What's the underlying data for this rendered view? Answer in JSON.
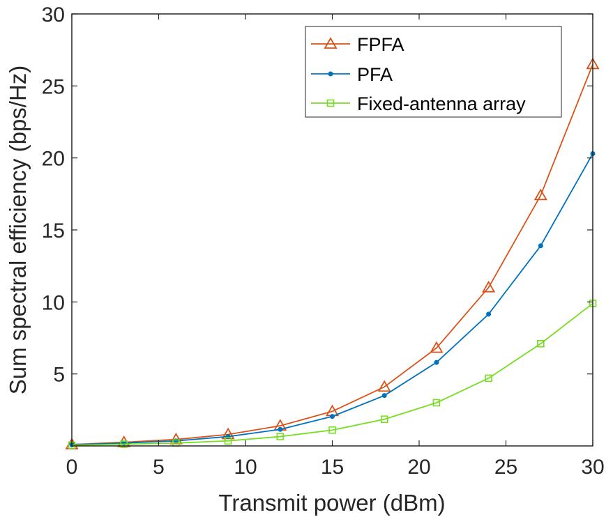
{
  "chart_data": {
    "type": "line",
    "title": "",
    "xlabel": "Transmit power (dBm)",
    "ylabel": "Sum spectral efficiency (bps/Hz)",
    "xlim": [
      0,
      30
    ],
    "ylim": [
      0,
      30
    ],
    "xticks": [
      0,
      5,
      10,
      15,
      20,
      25,
      30
    ],
    "xtick_labels": [
      "0",
      "5",
      "10",
      "15",
      "20",
      "25",
      "30"
    ],
    "yticks": [
      5,
      10,
      15,
      20,
      25,
      30
    ],
    "ytick_labels": [
      "5",
      "10",
      "15",
      "20",
      "25",
      "30"
    ],
    "grid": false,
    "legend_position": "top-right",
    "x": [
      0,
      3,
      6,
      9,
      12,
      15,
      18,
      21,
      24,
      27,
      30
    ],
    "series": [
      {
        "name": "FPFA",
        "color": "#D95319",
        "marker": "triangle",
        "values": [
          0.1,
          0.25,
          0.45,
          0.8,
          1.4,
          2.4,
          4.1,
          6.8,
          11.0,
          17.4,
          26.5
        ]
      },
      {
        "name": "PFA",
        "color": "#0072BD",
        "marker": "dot",
        "values": [
          0.08,
          0.2,
          0.35,
          0.65,
          1.15,
          2.05,
          3.5,
          5.8,
          9.15,
          13.9,
          20.3
        ]
      },
      {
        "name": "Fixed-antenna array",
        "color": "#77DD22",
        "marker": "square",
        "values": [
          0.05,
          0.12,
          0.2,
          0.35,
          0.65,
          1.1,
          1.85,
          3.0,
          4.7,
          7.1,
          9.9
        ]
      }
    ]
  }
}
